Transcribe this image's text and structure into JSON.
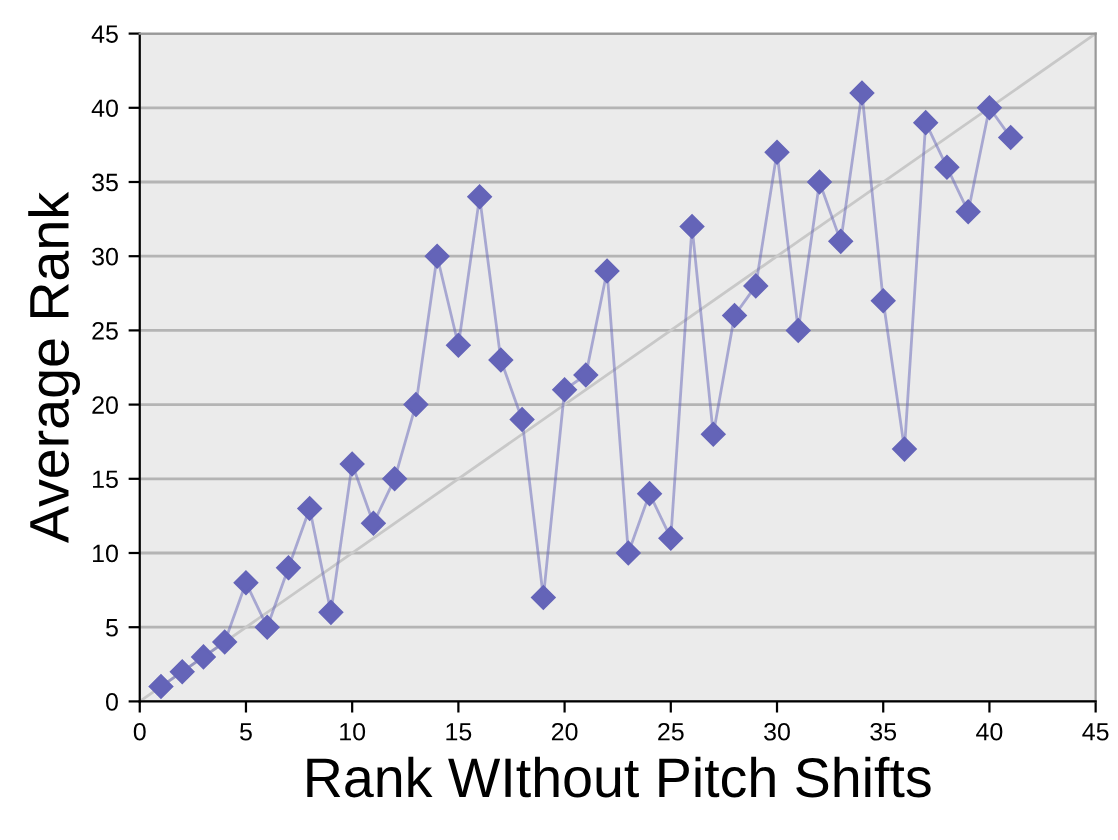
{
  "chart_data": {
    "type": "line",
    "xlabel": "Rank WIthout Pitch Shifts",
    "ylabel": "Average Rank",
    "series": [
      {
        "color": "#6464b8",
        "marker": "diamond",
        "x": [
          1,
          2,
          3,
          4,
          5,
          6,
          7,
          8,
          9,
          10,
          11,
          12,
          13,
          14,
          15,
          16,
          17,
          18,
          19,
          20,
          21,
          22,
          23,
          24,
          25,
          26,
          27,
          28,
          29,
          30,
          31,
          32,
          33,
          34,
          35,
          36,
          37,
          38,
          39,
          40,
          41
        ],
        "values": [
          1,
          2,
          3,
          4,
          8,
          5,
          9,
          13,
          6,
          16,
          12,
          15,
          20,
          30,
          24,
          34,
          23,
          19,
          7,
          21,
          22,
          29,
          10,
          14,
          11,
          32,
          18,
          26,
          28,
          37,
          25,
          35,
          31,
          41,
          27,
          17,
          39,
          36,
          33,
          40,
          38
        ]
      },
      {
        "color": "#c8c8c8",
        "marker": "none",
        "x": [
          0,
          45
        ],
        "values": [
          0,
          45
        ]
      }
    ],
    "xlim": [
      0,
      45
    ],
    "ylim": [
      0,
      45
    ],
    "xticks": [
      0,
      5,
      10,
      15,
      20,
      25,
      30,
      35,
      40,
      45
    ],
    "yticks": [
      0,
      5,
      10,
      15,
      20,
      25,
      30,
      35,
      40,
      45
    ],
    "grid": "y",
    "legend": false
  }
}
